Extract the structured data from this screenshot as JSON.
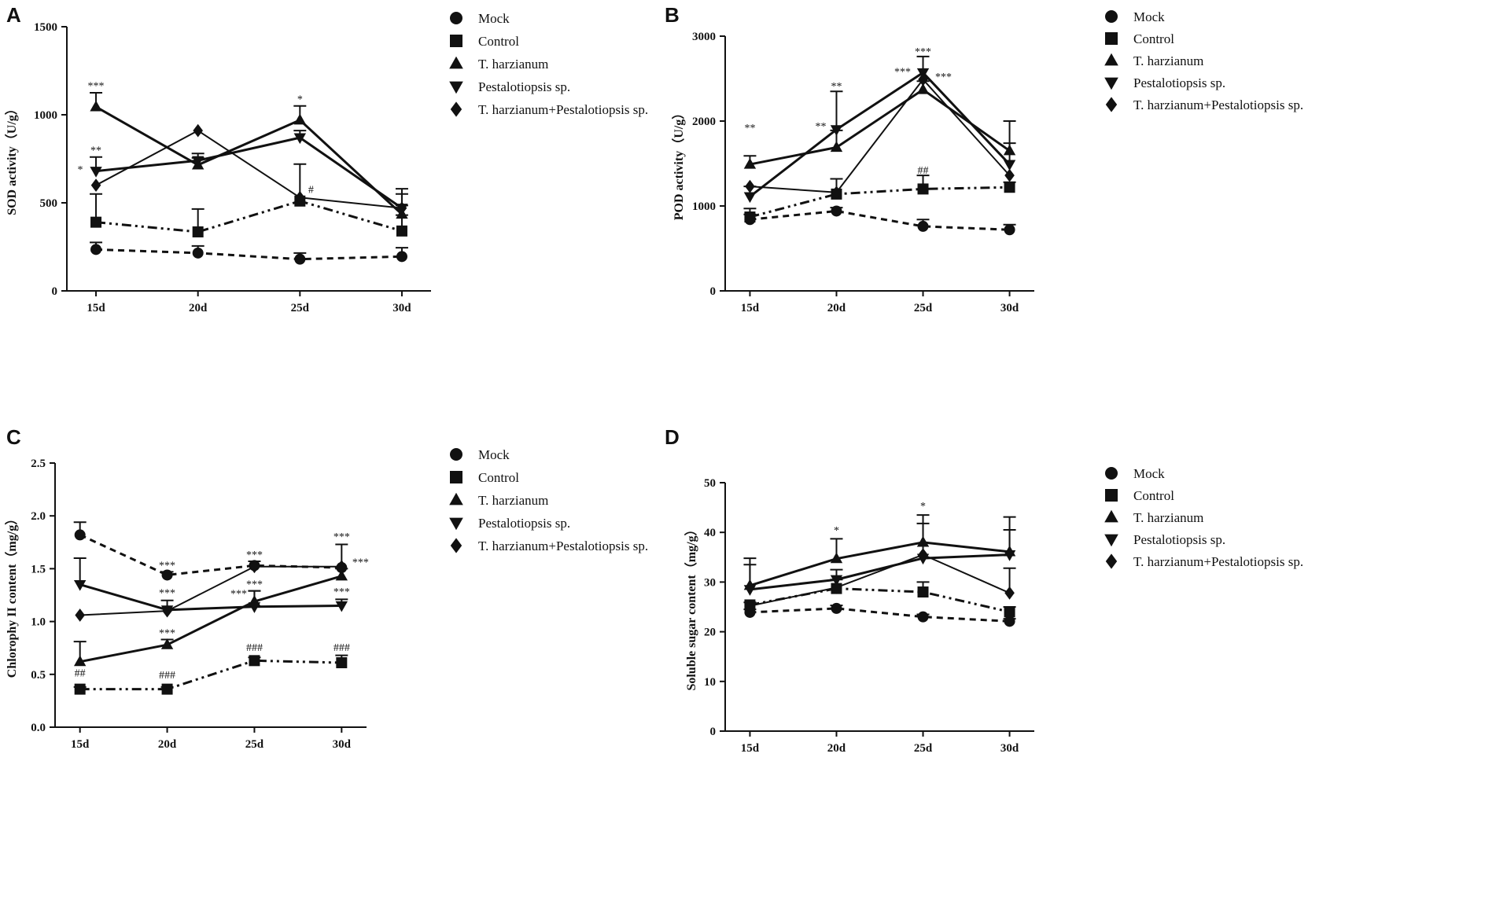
{
  "series_styles": {
    "Mock": {
      "marker": "circle",
      "dash": "8,6",
      "width": 3
    },
    "Control": {
      "marker": "square",
      "dash": "12,5,3,5,3,5",
      "width": 3
    },
    "T. harzianum": {
      "marker": "triangle-up",
      "dash": "",
      "width": 3
    },
    "Pestalotiopsis sp.": {
      "marker": "triangle-down",
      "dash": "",
      "width": 3
    },
    "T. harzianum+Pestalotiopsis sp.": {
      "marker": "diamond",
      "dash": "",
      "width": 2
    },
    "color": "#111111"
  },
  "chart_data": [
    {
      "panel": "A",
      "type": "line",
      "ylabel": "SOD activity（U/g）",
      "ylim": [
        0,
        1500
      ],
      "yticks": [
        0,
        500,
        1000,
        1500
      ],
      "categories": [
        "15d",
        "20d",
        "25d",
        "30d"
      ],
      "legend": [
        "Mock",
        "Control",
        "T. harzianum",
        "Pestalotiopsis sp.",
        "T. harzianum+Pestalotiopsis sp."
      ],
      "series": [
        {
          "name": "Mock",
          "values": [
            235,
            215,
            180,
            195
          ],
          "errors": [
            40,
            40,
            35,
            50
          ]
        },
        {
          "name": "Control",
          "values": [
            390,
            335,
            510,
            340
          ],
          "errors": [
            160,
            130,
            210,
            90
          ]
        },
        {
          "name": "T. harzianum",
          "values": [
            1045,
            715,
            970,
            435
          ],
          "errors": [
            80,
            40,
            80,
            50
          ]
        },
        {
          "name": "Pestalotiopsis sp.",
          "values": [
            680,
            740,
            870,
            470
          ],
          "errors": [
            80,
            40,
            40,
            80
          ]
        },
        {
          "name": "T. harzianum+Pestalotiopsis sp.",
          "values": [
            600,
            910,
            530,
            470
          ],
          "errors": [
            0,
            0,
            0,
            110
          ]
        }
      ],
      "annotations": [
        {
          "text": "***",
          "category": "15d",
          "value": 1145
        },
        {
          "text": "**",
          "category": "15d",
          "value": 780
        },
        {
          "text": "*",
          "category": "15d",
          "value": 670,
          "offset": -20
        },
        {
          "text": "*",
          "category": "25d",
          "value": 1070
        },
        {
          "text": "#",
          "category": "25d",
          "value": 555,
          "offset": 14
        }
      ]
    },
    {
      "panel": "B",
      "type": "line",
      "ylabel": "POD activity（U/g）",
      "ylim": [
        0,
        3000
      ],
      "yticks": [
        0,
        1000,
        2000,
        3000
      ],
      "categories": [
        "15d",
        "20d",
        "25d",
        "30d"
      ],
      "legend": [
        "Mock",
        "Control",
        "T. harzianum",
        "Pestalotiopsis sp.",
        "T. harzianum+Pestalotiopsis sp."
      ],
      "series": [
        {
          "name": "Mock",
          "values": [
            840,
            940,
            760,
            720
          ],
          "errors": [
            60,
            40,
            80,
            60
          ]
        },
        {
          "name": "Control",
          "values": [
            870,
            1140,
            1200,
            1220
          ],
          "errors": [
            100,
            180,
            160,
            60
          ]
        },
        {
          "name": "T. harzianum",
          "values": [
            1490,
            1690,
            2370,
            1650
          ],
          "errors": [
            100,
            200,
            100,
            350
          ]
        },
        {
          "name": "Pestalotiopsis sp.",
          "values": [
            1110,
            1900,
            2570,
            1490
          ],
          "errors": [
            120,
            450,
            190,
            250
          ]
        },
        {
          "name": "T. harzianum+Pestalotiopsis sp.",
          "values": [
            1230,
            1160,
            2490,
            1360
          ],
          "errors": [
            0,
            0,
            0,
            0
          ]
        }
      ],
      "annotations": [
        {
          "text": "**",
          "category": "15d",
          "value": 1880
        },
        {
          "text": "**",
          "category": "20d",
          "value": 2370
        },
        {
          "text": "**",
          "category": "20d",
          "value": 1900,
          "offset": -20
        },
        {
          "text": "***",
          "category": "25d",
          "value": 2780
        },
        {
          "text": "***",
          "category": "25d",
          "value": 2540,
          "offset": -26
        },
        {
          "text": "***",
          "category": "25d",
          "value": 2480,
          "offset": 26
        },
        {
          "text": "##",
          "category": "25d",
          "value": 1380
        }
      ]
    },
    {
      "panel": "C",
      "type": "line",
      "ylabel": "Chlorophy II content（mg/g）",
      "ylim": [
        0,
        2.5
      ],
      "yticks": [
        "0.0",
        "0.5",
        "1.0",
        "1.5",
        "2.0",
        "2.5"
      ],
      "categories": [
        "15d",
        "20d",
        "25d",
        "30d"
      ],
      "legend": [
        "Mock",
        "Control",
        "T. harzianum",
        "Pestalotiopsis sp.",
        "T. harzianum+Pestalotiopsis sp."
      ],
      "series": [
        {
          "name": "Mock",
          "values": [
            1.82,
            1.44,
            1.53,
            1.51
          ],
          "errors": [
            0.12,
            0.03,
            0.04,
            0.22
          ]
        },
        {
          "name": "Control",
          "values": [
            0.36,
            0.36,
            0.63,
            0.61
          ],
          "errors": [
            0.02,
            0.02,
            0.03,
            0.07
          ]
        },
        {
          "name": "T. harzianum",
          "values": [
            0.62,
            0.78,
            1.19,
            1.43
          ],
          "errors": [
            0.19,
            0.05,
            0.1,
            0.07
          ]
        },
        {
          "name": "Pestalotiopsis sp.",
          "values": [
            1.35,
            1.11,
            1.14,
            1.15
          ],
          "errors": [
            0.25,
            0.09,
            0.15,
            0.06
          ]
        },
        {
          "name": "T. harzianum+Pestalotiopsis sp.",
          "values": [
            1.06,
            1.1,
            1.52,
            1.52
          ],
          "errors": [
            0,
            0,
            0,
            0
          ]
        }
      ],
      "annotations": [
        {
          "text": "***",
          "category": "20d",
          "value": 1.5
        },
        {
          "text": "***",
          "category": "20d",
          "value": 1.24
        },
        {
          "text": "***",
          "category": "20d",
          "value": 0.86
        },
        {
          "text": "***",
          "category": "25d",
          "value": 1.6
        },
        {
          "text": "***",
          "category": "25d",
          "value": 1.32
        },
        {
          "text": "***",
          "category": "25d",
          "value": 1.23,
          "offset": -20
        },
        {
          "text": "***",
          "category": "30d",
          "value": 1.77
        },
        {
          "text": "***",
          "category": "30d",
          "value": 1.53,
          "offset": 24
        },
        {
          "text": "***",
          "category": "30d",
          "value": 1.25
        },
        {
          "text": "##",
          "category": "15d",
          "value": 0.48
        },
        {
          "text": "###",
          "category": "20d",
          "value": 0.46
        },
        {
          "text": "###",
          "category": "25d",
          "value": 0.72
        },
        {
          "text": "###",
          "category": "30d",
          "value": 0.72
        }
      ]
    },
    {
      "panel": "D",
      "type": "line",
      "ylabel": "Soluble sugar content（mg/g）",
      "ylim": [
        0,
        50
      ],
      "yticks": [
        0,
        10,
        20,
        30,
        40,
        50
      ],
      "categories": [
        "15d",
        "20d",
        "25d",
        "30d"
      ],
      "legend": [
        "Mock",
        "Control",
        "T. harzianum",
        "Pestalotiopsis sp.",
        "T. harzianum+Pestalotiopsis sp."
      ],
      "series": [
        {
          "name": "Mock",
          "values": [
            23.9,
            24.7,
            23.0,
            22.1
          ],
          "errors": [
            0.6,
            0.6,
            0.5,
            0.5
          ]
        },
        {
          "name": "Control",
          "values": [
            25.4,
            28.7,
            28.0,
            24.0
          ],
          "errors": [
            0.5,
            1.8,
            2.0,
            1.0
          ]
        },
        {
          "name": "T. harzianum",
          "values": [
            29.3,
            34.7,
            38.0,
            36.1
          ],
          "errors": [
            5.5,
            4.0,
            5.5,
            7.0
          ]
        },
        {
          "name": "Pestalotiopsis sp.",
          "values": [
            28.5,
            30.5,
            34.8,
            35.5
          ],
          "errors": [
            5.0,
            2.0,
            7.0,
            5.0
          ]
        },
        {
          "name": "T. harzianum+Pestalotiopsis sp.",
          "values": [
            25.2,
            28.9,
            35.5,
            27.8
          ],
          "errors": [
            0,
            0,
            0,
            5.0
          ]
        }
      ],
      "annotations": [
        {
          "text": "*",
          "category": "20d",
          "value": 39.7
        },
        {
          "text": "*",
          "category": "25d",
          "value": 44.6
        }
      ]
    }
  ]
}
